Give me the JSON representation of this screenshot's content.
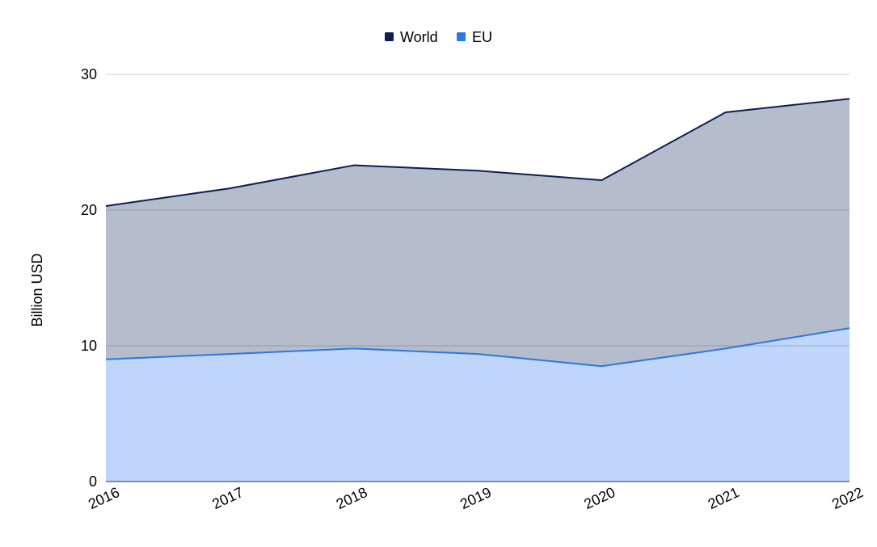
{
  "chart_data": {
    "type": "area",
    "title": "",
    "xlabel": "",
    "ylabel": "Billion USD",
    "categories": [
      "2016",
      "2017",
      "2018",
      "2019",
      "2020",
      "2021",
      "2022"
    ],
    "ylim": [
      0,
      30
    ],
    "yticks": [
      "0",
      "10",
      "20",
      "30"
    ],
    "grid": true,
    "legend_position": "top-center",
    "stacked": false,
    "series": [
      {
        "name": "World",
        "values": [
          20.3,
          21.6,
          23.3,
          22.9,
          22.2,
          27.2,
          28.2
        ],
        "line_color": "#0b1f51",
        "fill_color": "#b5bccc"
      },
      {
        "name": "EU",
        "values": [
          9.0,
          9.4,
          9.8,
          9.4,
          8.5,
          9.8,
          11.3
        ],
        "line_color": "#2b78e4",
        "fill_color": "#bfd5f9"
      }
    ]
  }
}
